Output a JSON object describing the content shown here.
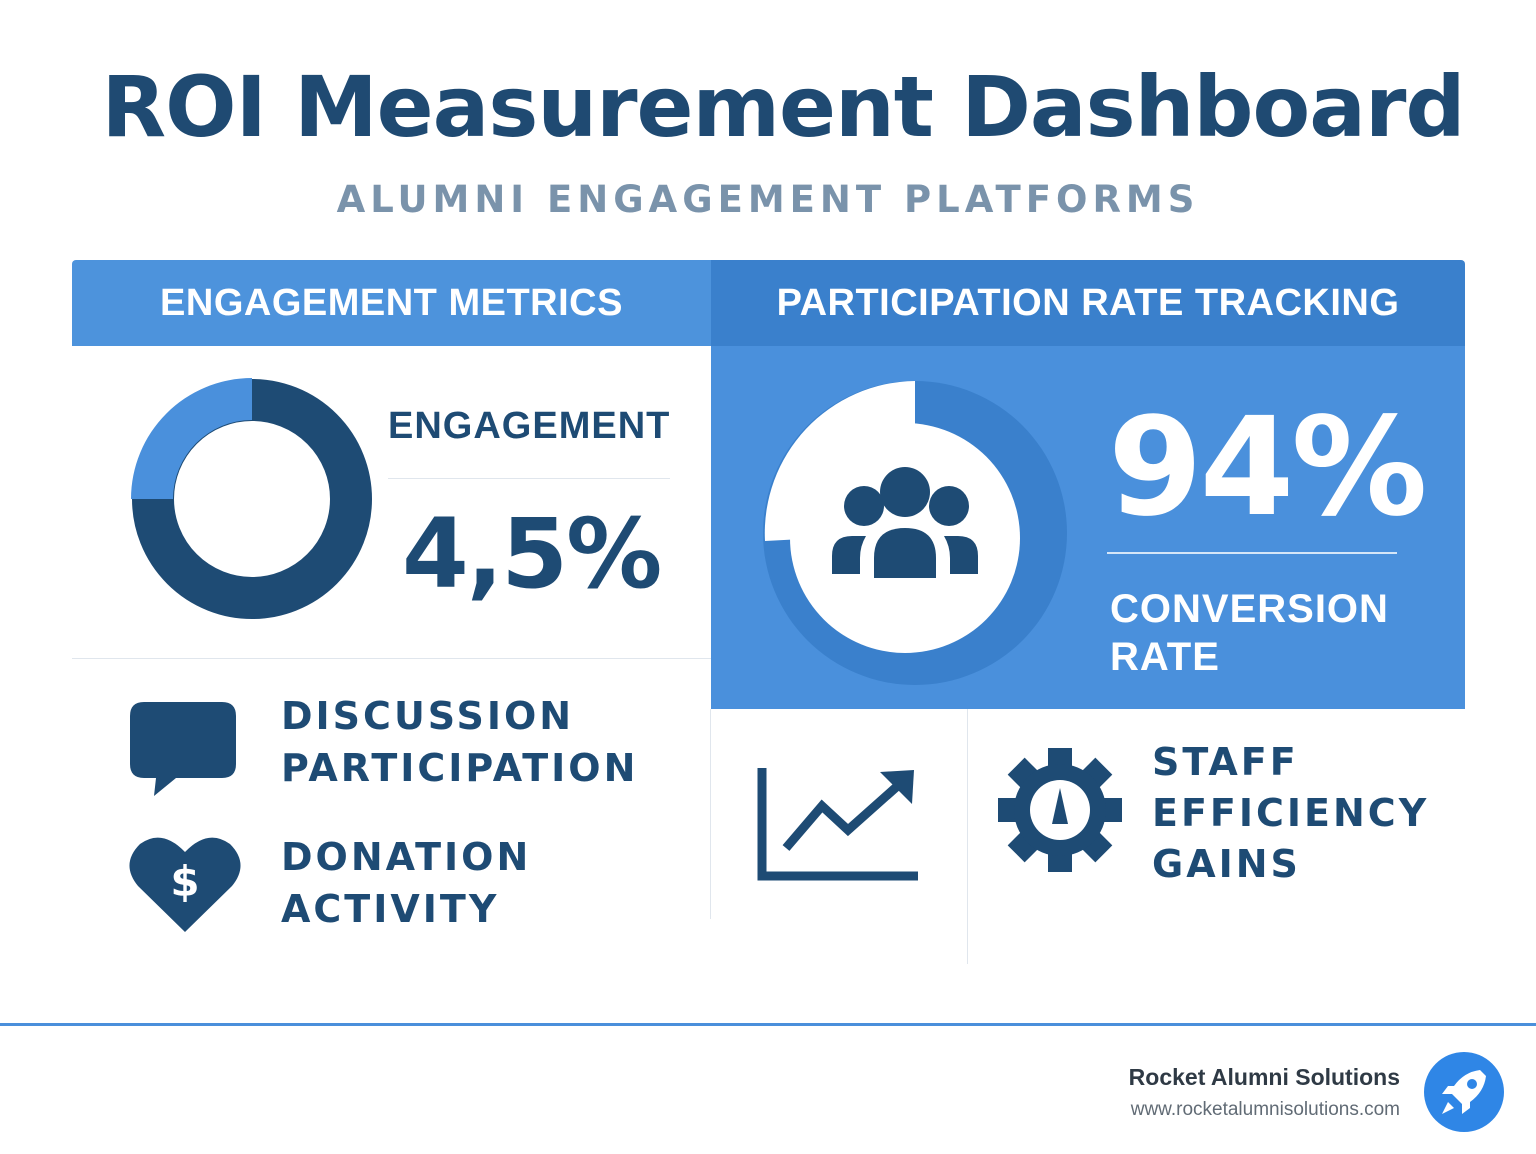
{
  "header": {
    "title": "ROI Measurement Dashboard",
    "subtitle": "ALUMNI ENGAGEMENT PLATFORMS"
  },
  "sections": {
    "engagement_metrics": {
      "heading": "ENGAGEMENT METRICS",
      "metric_label": "ENGAGEMENT",
      "metric_value": "4,5%"
    },
    "participation": {
      "heading": "PARTICIPATION RATE TRACKING",
      "metric_value": "94%",
      "metric_label_line1": "CONVERSION",
      "metric_label_line2": "RATE"
    }
  },
  "features": {
    "discussion": {
      "line1": "DISCUSSION",
      "line2": "PARTICIPATION",
      "icon": "speech-bubble-icon"
    },
    "donation": {
      "line1": "DONATION",
      "line2": "ACTIVITY",
      "icon": "heart-dollar-icon"
    },
    "growth": {
      "icon": "trend-chart-icon"
    },
    "staff": {
      "line1": "STAFF",
      "line2": "EFFICIENCY",
      "line3": "GAINS",
      "icon": "gear-icon"
    }
  },
  "footer": {
    "brand_name": "Rocket Alumni Solutions",
    "brand_url": "www.rocketalumnisolutions.com",
    "logo_icon": "rocket-icon"
  },
  "colors": {
    "navy": "#1e4b74",
    "blue_light": "#4d93dc",
    "blue_dark": "#3a80cc",
    "subtitle_gray": "#7a93ab",
    "footer_line": "#4a8fdb"
  }
}
